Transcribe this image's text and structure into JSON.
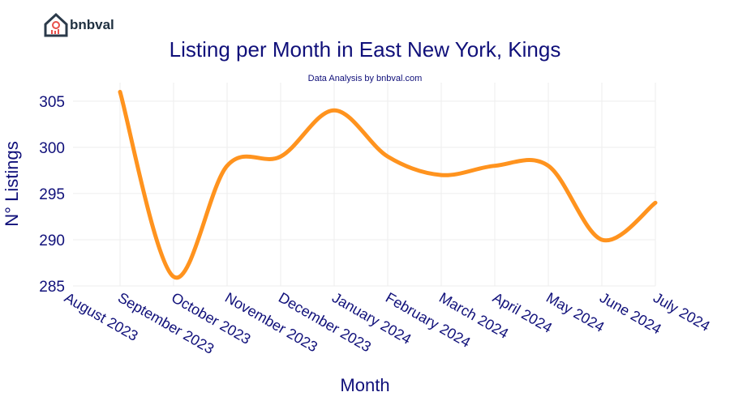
{
  "brand": "bnbval",
  "chart_data": {
    "type": "line",
    "title": "Listing per Month in East New York, Kings",
    "subtitle": "Data Analysis by bnbval.com",
    "x_label": "Month",
    "y_label": "N° Listings",
    "categories": [
      "August 2023",
      "September 2023",
      "October 2023",
      "November 2023",
      "December 2023",
      "January 2024",
      "February 2024",
      "March 2024",
      "April 2024",
      "May 2024",
      "June 2024",
      "July 2024"
    ],
    "series": [
      {
        "name": "Listings",
        "color": "#ff931e",
        "values": [
          null,
          306,
          286,
          298,
          299,
          304,
          299,
          297,
          298,
          298,
          290,
          294
        ]
      }
    ],
    "ylim": [
      285,
      307
    ],
    "yticks": [
      285,
      290,
      295,
      300,
      305
    ],
    "grid": true
  }
}
